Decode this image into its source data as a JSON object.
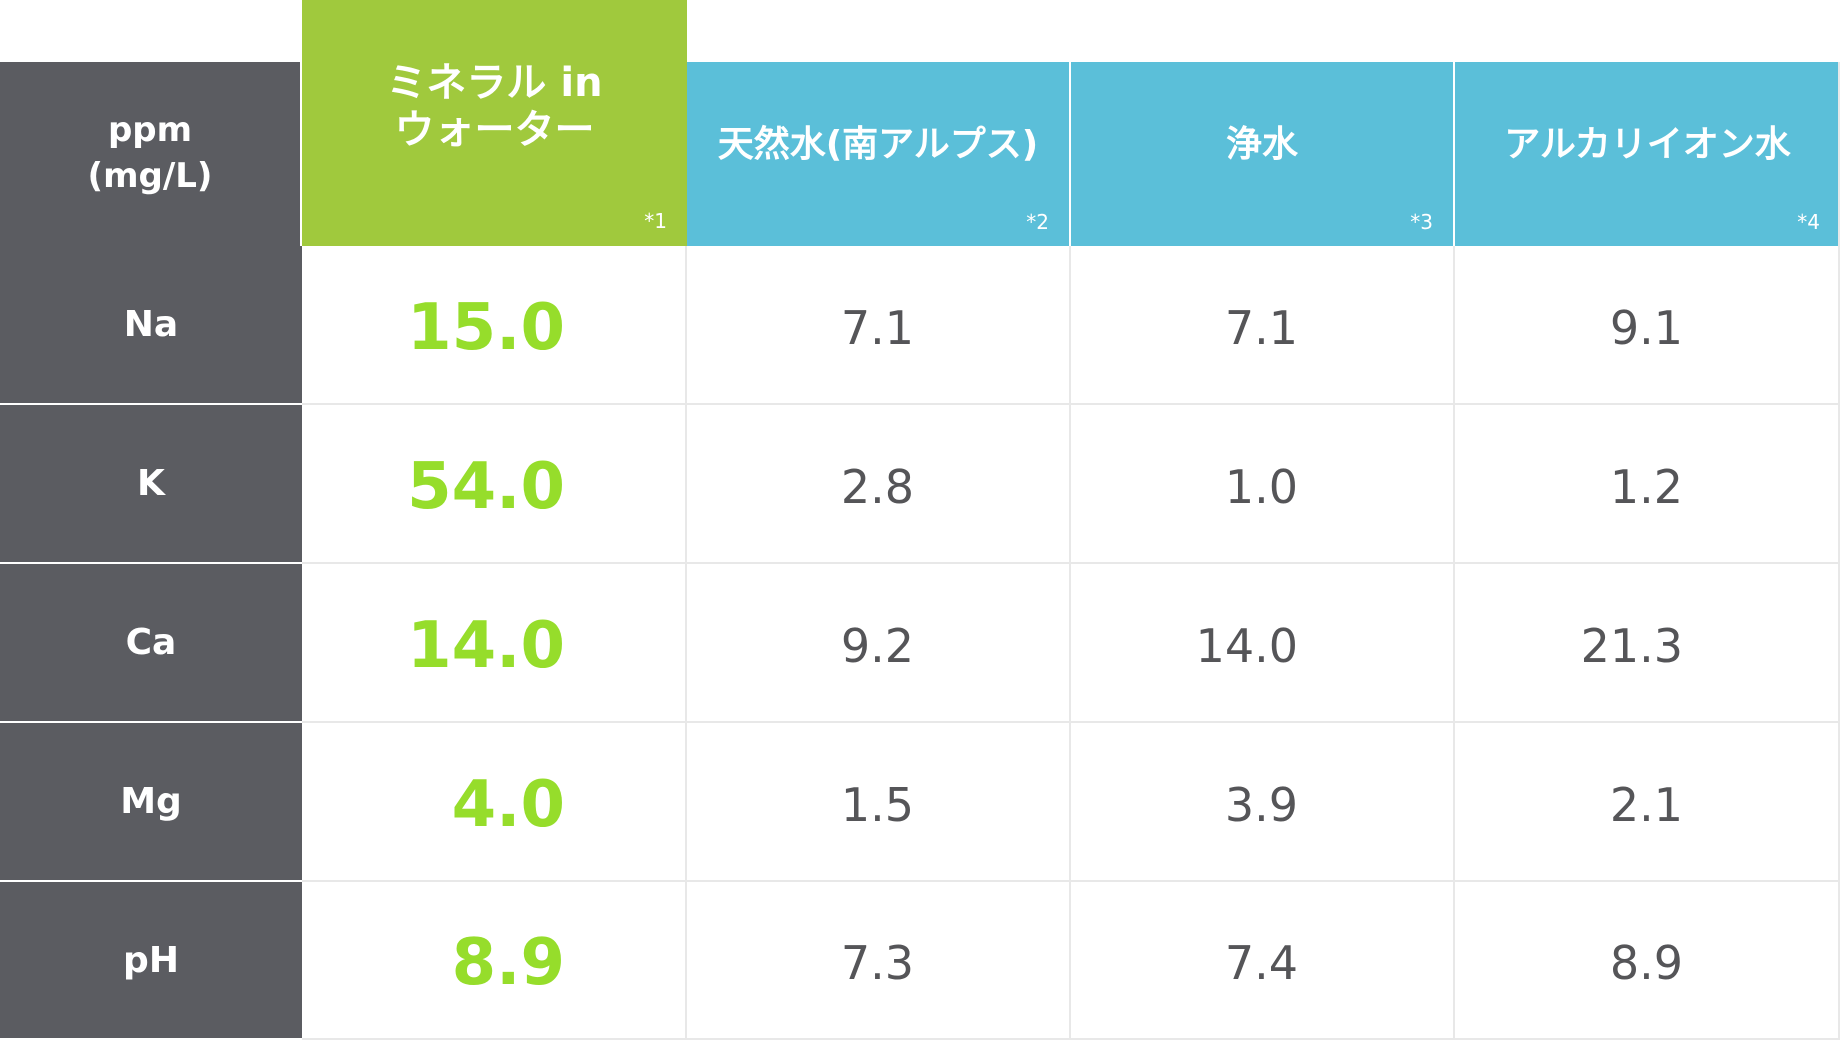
{
  "table": {
    "unit_line1": "ppm",
    "unit_line2": "(mg/L)",
    "columns": [
      {
        "title_line1": "ミネラル in",
        "title_line2": "ウォーター",
        "footnote": "*1",
        "highlight": true
      },
      {
        "title": "天然水(南アルプス)",
        "footnote": "*2"
      },
      {
        "title": "浄水",
        "footnote": "*3"
      },
      {
        "title": "アルカリイオン水",
        "footnote": "*4"
      }
    ],
    "rows": [
      {
        "label": "Na",
        "values": [
          "15.0",
          "7.1",
          "7.1",
          "9.1"
        ]
      },
      {
        "label": "K",
        "values": [
          "54.0",
          "2.8",
          "1.0",
          "1.2"
        ]
      },
      {
        "label": "Ca",
        "values": [
          "14.0",
          "9.2",
          "14.0",
          "21.3"
        ]
      },
      {
        "label": "Mg",
        "values": [
          "4.0",
          "1.5",
          "3.9",
          "2.1"
        ]
      },
      {
        "label": "pH",
        "values": [
          "8.9",
          "7.3",
          "7.4",
          "8.9"
        ]
      }
    ]
  },
  "colors": {
    "label_bg": "#5b5c61",
    "highlight_header_bg": "#a0c93d",
    "highlight_value": "#96dd2b",
    "header_bg": "#5bbfd9",
    "value_text": "#555558"
  },
  "chart_data": {
    "type": "table",
    "title": "",
    "corner_label": "ppm (mg/L)",
    "columns": [
      "ミネラル in ウォーター",
      "天然水(南アルプス)",
      "浄水",
      "アルカリイオン水"
    ],
    "footnotes": [
      "*1",
      "*2",
      "*3",
      "*4"
    ],
    "rows": [
      "Na",
      "K",
      "Ca",
      "Mg",
      "pH"
    ],
    "series": [
      {
        "name": "ミネラル in ウォーター",
        "values": [
          15.0,
          54.0,
          14.0,
          4.0,
          8.9
        ]
      },
      {
        "name": "天然水(南アルプス)",
        "values": [
          7.1,
          2.8,
          9.2,
          1.5,
          7.3
        ]
      },
      {
        "name": "浄水",
        "values": [
          7.1,
          1.0,
          14.0,
          3.9,
          7.4
        ]
      },
      {
        "name": "アルカリイオン水",
        "values": [
          9.1,
          1.2,
          21.3,
          2.1,
          8.9
        ]
      }
    ]
  }
}
